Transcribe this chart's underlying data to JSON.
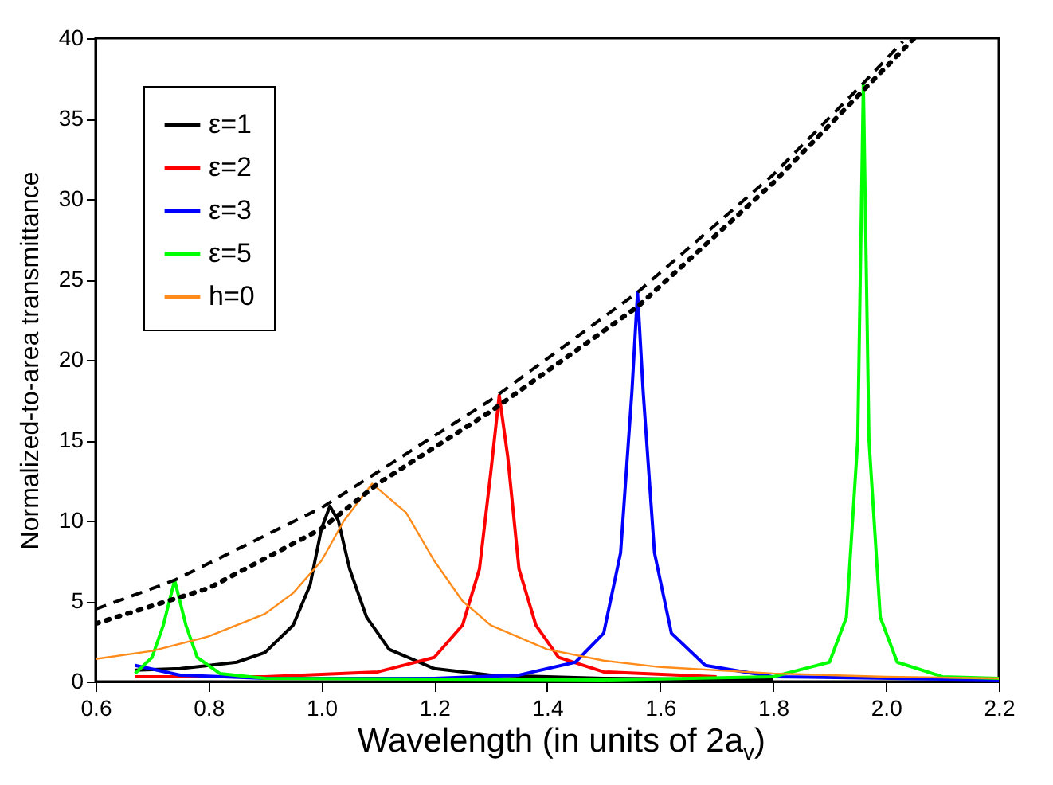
{
  "chart_data": {
    "type": "line",
    "xlabel": "Wavelength (in units of 2a$_{v}$)",
    "ylabel": "Normalized-to-area transmittance",
    "xlim": [
      0.6,
      2.2
    ],
    "ylim": [
      0,
      40
    ],
    "xticks": [
      0.6,
      0.8,
      {
        "value": 1,
        "label": "1.0"
      },
      1.2,
      1.4,
      1.6,
      1.8,
      {
        "value": 2,
        "label": "2.0"
      },
      2.2
    ],
    "yticks": [
      0,
      5,
      10,
      15,
      20,
      25,
      30,
      35,
      40
    ],
    "legend": "top left",
    "grid": false,
    "line_style": "solid",
    "series": [
      {
        "name": "ε=1",
        "color": "#000000",
        "x": [
          0.67,
          0.75,
          0.85,
          0.9,
          0.95,
          0.98,
          1.0,
          1.015,
          1.03,
          1.05,
          1.08,
          1.12,
          1.2,
          1.3,
          1.5,
          1.8
        ],
        "values": [
          0.7,
          0.8,
          1.2,
          1.8,
          3.5,
          6,
          9.5,
          10.9,
          10,
          7,
          4,
          2,
          0.8,
          0.4,
          0.2,
          0.1
        ]
      },
      {
        "name": "ε=2",
        "color": "#ff0000",
        "x": [
          0.67,
          0.9,
          1.1,
          1.2,
          1.25,
          1.28,
          1.3,
          1.315,
          1.33,
          1.35,
          1.38,
          1.42,
          1.5,
          1.7
        ],
        "values": [
          0.3,
          0.3,
          0.6,
          1.5,
          3.5,
          7,
          13,
          17.8,
          14,
          7,
          3.5,
          1.5,
          0.6,
          0.3
        ]
      },
      {
        "name": "ε=3",
        "color": "#0000ff",
        "x": [
          0.67,
          0.75,
          0.9,
          1.2,
          1.35,
          1.45,
          1.5,
          1.53,
          1.55,
          1.56,
          1.57,
          1.59,
          1.62,
          1.68,
          1.8,
          2.2
        ],
        "values": [
          1.0,
          0.4,
          0.2,
          0.2,
          0.4,
          1.2,
          3,
          8,
          18,
          24.2,
          18,
          8,
          3,
          1,
          0.3,
          0.1
        ]
      },
      {
        "name": "ε=5",
        "color": "#00ff00",
        "x": [
          0.67,
          0.7,
          0.72,
          0.74,
          0.76,
          0.78,
          0.82,
          0.9,
          1.5,
          1.8,
          1.9,
          1.93,
          1.95,
          1.96,
          1.97,
          1.99,
          2.02,
          2.1,
          2.2
        ],
        "values": [
          0.5,
          1.5,
          3.5,
          6.3,
          3.5,
          1.5,
          0.5,
          0.2,
          0.1,
          0.3,
          1.2,
          4,
          15,
          37.2,
          15,
          4,
          1.2,
          0.3,
          0.2
        ]
      },
      {
        "name": "h=0",
        "color": "#ff8c1a",
        "x": [
          0.6,
          0.7,
          0.8,
          0.9,
          0.95,
          1.0,
          1.04,
          1.09,
          1.15,
          1.2,
          1.25,
          1.3,
          1.4,
          1.5,
          1.6,
          1.8,
          2.0,
          2.2
        ],
        "values": [
          1.4,
          1.9,
          2.8,
          4.2,
          5.5,
          7.5,
          10,
          12.3,
          10.5,
          7.5,
          5,
          3.5,
          2,
          1.3,
          0.9,
          0.5,
          0.3,
          0.2
        ]
      },
      {
        "color": "#000000",
        "line_style": "dashed",
        "x": [
          0.6,
          0.74,
          1.0,
          1.3,
          1.56,
          1.8,
          1.96,
          2.03
        ],
        "values": [
          4.5,
          6.3,
          10.8,
          17.5,
          24.2,
          31.5,
          37.2,
          39.8
        ]
      },
      {
        "color": "#000000",
        "line_style": "dotted",
        "x": [
          0.6,
          0.8,
          1.0,
          1.1,
          1.3,
          1.56,
          1.8,
          2.05
        ],
        "values": [
          3.6,
          5.8,
          9.5,
          12.3,
          16.8,
          23.3,
          31,
          40
        ]
      }
    ]
  }
}
